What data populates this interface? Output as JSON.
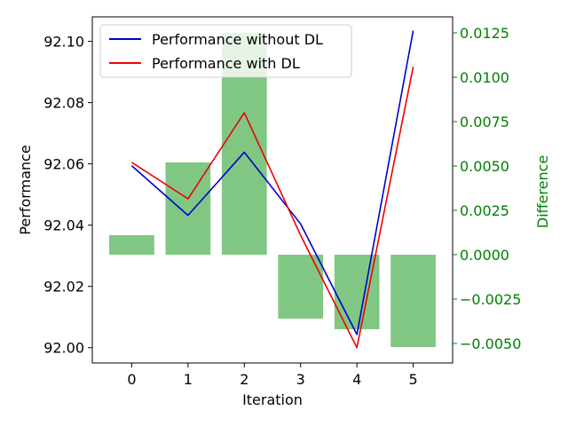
{
  "chart_data": {
    "type": "line",
    "title": "",
    "xlabel": "Iteration",
    "ylabel": "Performance",
    "y2label": "Difference",
    "x": [
      0,
      1,
      2,
      3,
      4,
      5
    ],
    "xlim": [
      -0.7,
      5.7
    ],
    "ylim": [
      91.995,
      92.108
    ],
    "y2lim": [
      -0.0061,
      0.0134
    ],
    "x_ticks": [
      0,
      1,
      2,
      3,
      4,
      5
    ],
    "x_tick_labels": [
      "0",
      "1",
      "2",
      "3",
      "4",
      "5"
    ],
    "y_ticks": [
      92.0,
      92.02,
      92.04,
      92.06,
      92.08,
      92.1
    ],
    "y_tick_labels": [
      "92.00",
      "92.02",
      "92.04",
      "92.06",
      "92.08",
      "92.10"
    ],
    "y2_ticks": [
      -0.005,
      -0.0025,
      0.0,
      0.0025,
      0.005,
      0.0075,
      0.01,
      0.0125
    ],
    "y2_tick_labels": [
      "−0.0050",
      "−0.0025",
      "0.0000",
      "0.0025",
      "0.0050",
      "0.0075",
      "0.0100",
      "0.0125"
    ],
    "series": [
      {
        "name": "Performance without DL",
        "kind": "line",
        "axis": "left",
        "color": "#0000cc",
        "values": [
          92.0594,
          92.0432,
          92.0638,
          92.0404,
          92.0043,
          92.1035
        ]
      },
      {
        "name": "Performance with DL",
        "kind": "line",
        "axis": "left",
        "color": "#ee0000",
        "values": [
          92.0605,
          92.0486,
          92.0767,
          92.0367,
          92.0,
          92.0917
        ]
      },
      {
        "kind": "bar",
        "axis": "right",
        "color": "#4caf50",
        "opacity": 0.7,
        "values": [
          0.0011,
          0.0052,
          0.0125,
          -0.0036,
          -0.0042,
          -0.0052
        ]
      }
    ],
    "legend": {
      "placement": "top-left"
    },
    "grid": false,
    "right_axis_color": "#008000"
  }
}
